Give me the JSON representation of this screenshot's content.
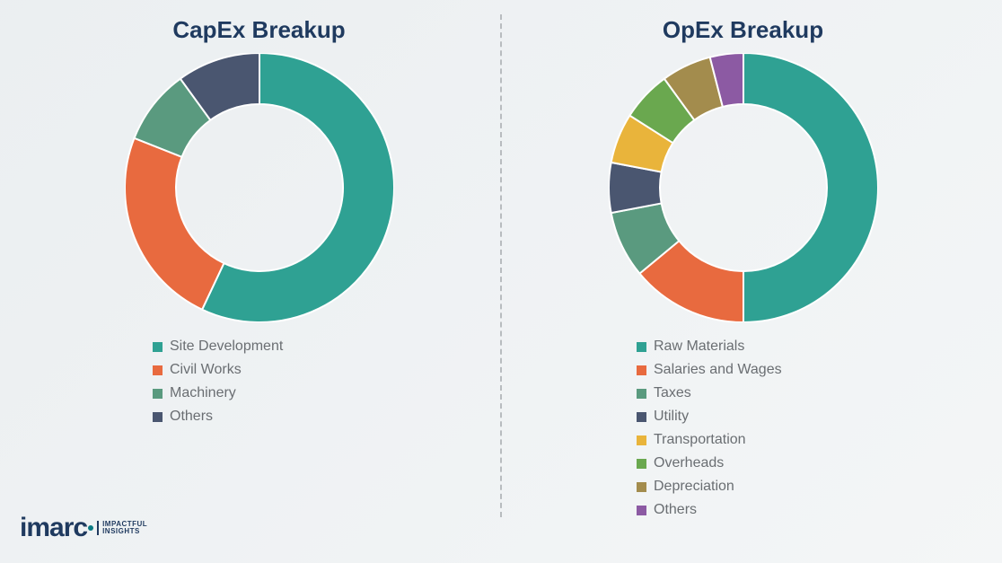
{
  "background_color": "#f2f4f5",
  "divider_color": "#b8bcbf",
  "logo": {
    "brand": "imarc",
    "tagline_line1": "IMPACTFUL",
    "tagline_line2": "INSIGHTS",
    "brand_color": "#1f3a5f",
    "dot_color": "#0a7b83"
  },
  "capex": {
    "title": "CapEx Breakup",
    "title_color": "#1f3a5f",
    "title_fontsize": 26,
    "type": "donut",
    "inner_radius": 0.62,
    "outer_radius": 1.0,
    "start_angle_deg": 0,
    "stroke_color": "#ffffff",
    "stroke_width": 2,
    "segments": [
      {
        "label": "Site Development",
        "value": 57,
        "color": "#2fa193"
      },
      {
        "label": "Civil Works",
        "value": 24,
        "color": "#e86a3f"
      },
      {
        "label": "Machinery",
        "value": 9,
        "color": "#5a9a7f"
      },
      {
        "label": "Others",
        "value": 10,
        "color": "#4a5670"
      }
    ],
    "legend_label_color": "#6a6e72",
    "legend_fontsize": 16
  },
  "opex": {
    "title": "OpEx Breakup",
    "title_color": "#1f3a5f",
    "title_fontsize": 26,
    "type": "donut",
    "inner_radius": 0.62,
    "outer_radius": 1.0,
    "start_angle_deg": 0,
    "stroke_color": "#ffffff",
    "stroke_width": 2,
    "segments": [
      {
        "label": "Raw Materials",
        "value": 50,
        "color": "#2fa193"
      },
      {
        "label": "Salaries and Wages",
        "value": 14,
        "color": "#e86a3f"
      },
      {
        "label": "Taxes",
        "value": 8,
        "color": "#5a9a7f"
      },
      {
        "label": "Utility",
        "value": 6,
        "color": "#4a5670"
      },
      {
        "label": "Transportation",
        "value": 6,
        "color": "#e9b43b"
      },
      {
        "label": "Overheads",
        "value": 6,
        "color": "#6aa84f"
      },
      {
        "label": "Depreciation",
        "value": 6,
        "color": "#a38c4d"
      },
      {
        "label": "Others",
        "value": 4,
        "color": "#8c5aa3"
      }
    ],
    "legend_label_color": "#6a6e72",
    "legend_fontsize": 16
  }
}
